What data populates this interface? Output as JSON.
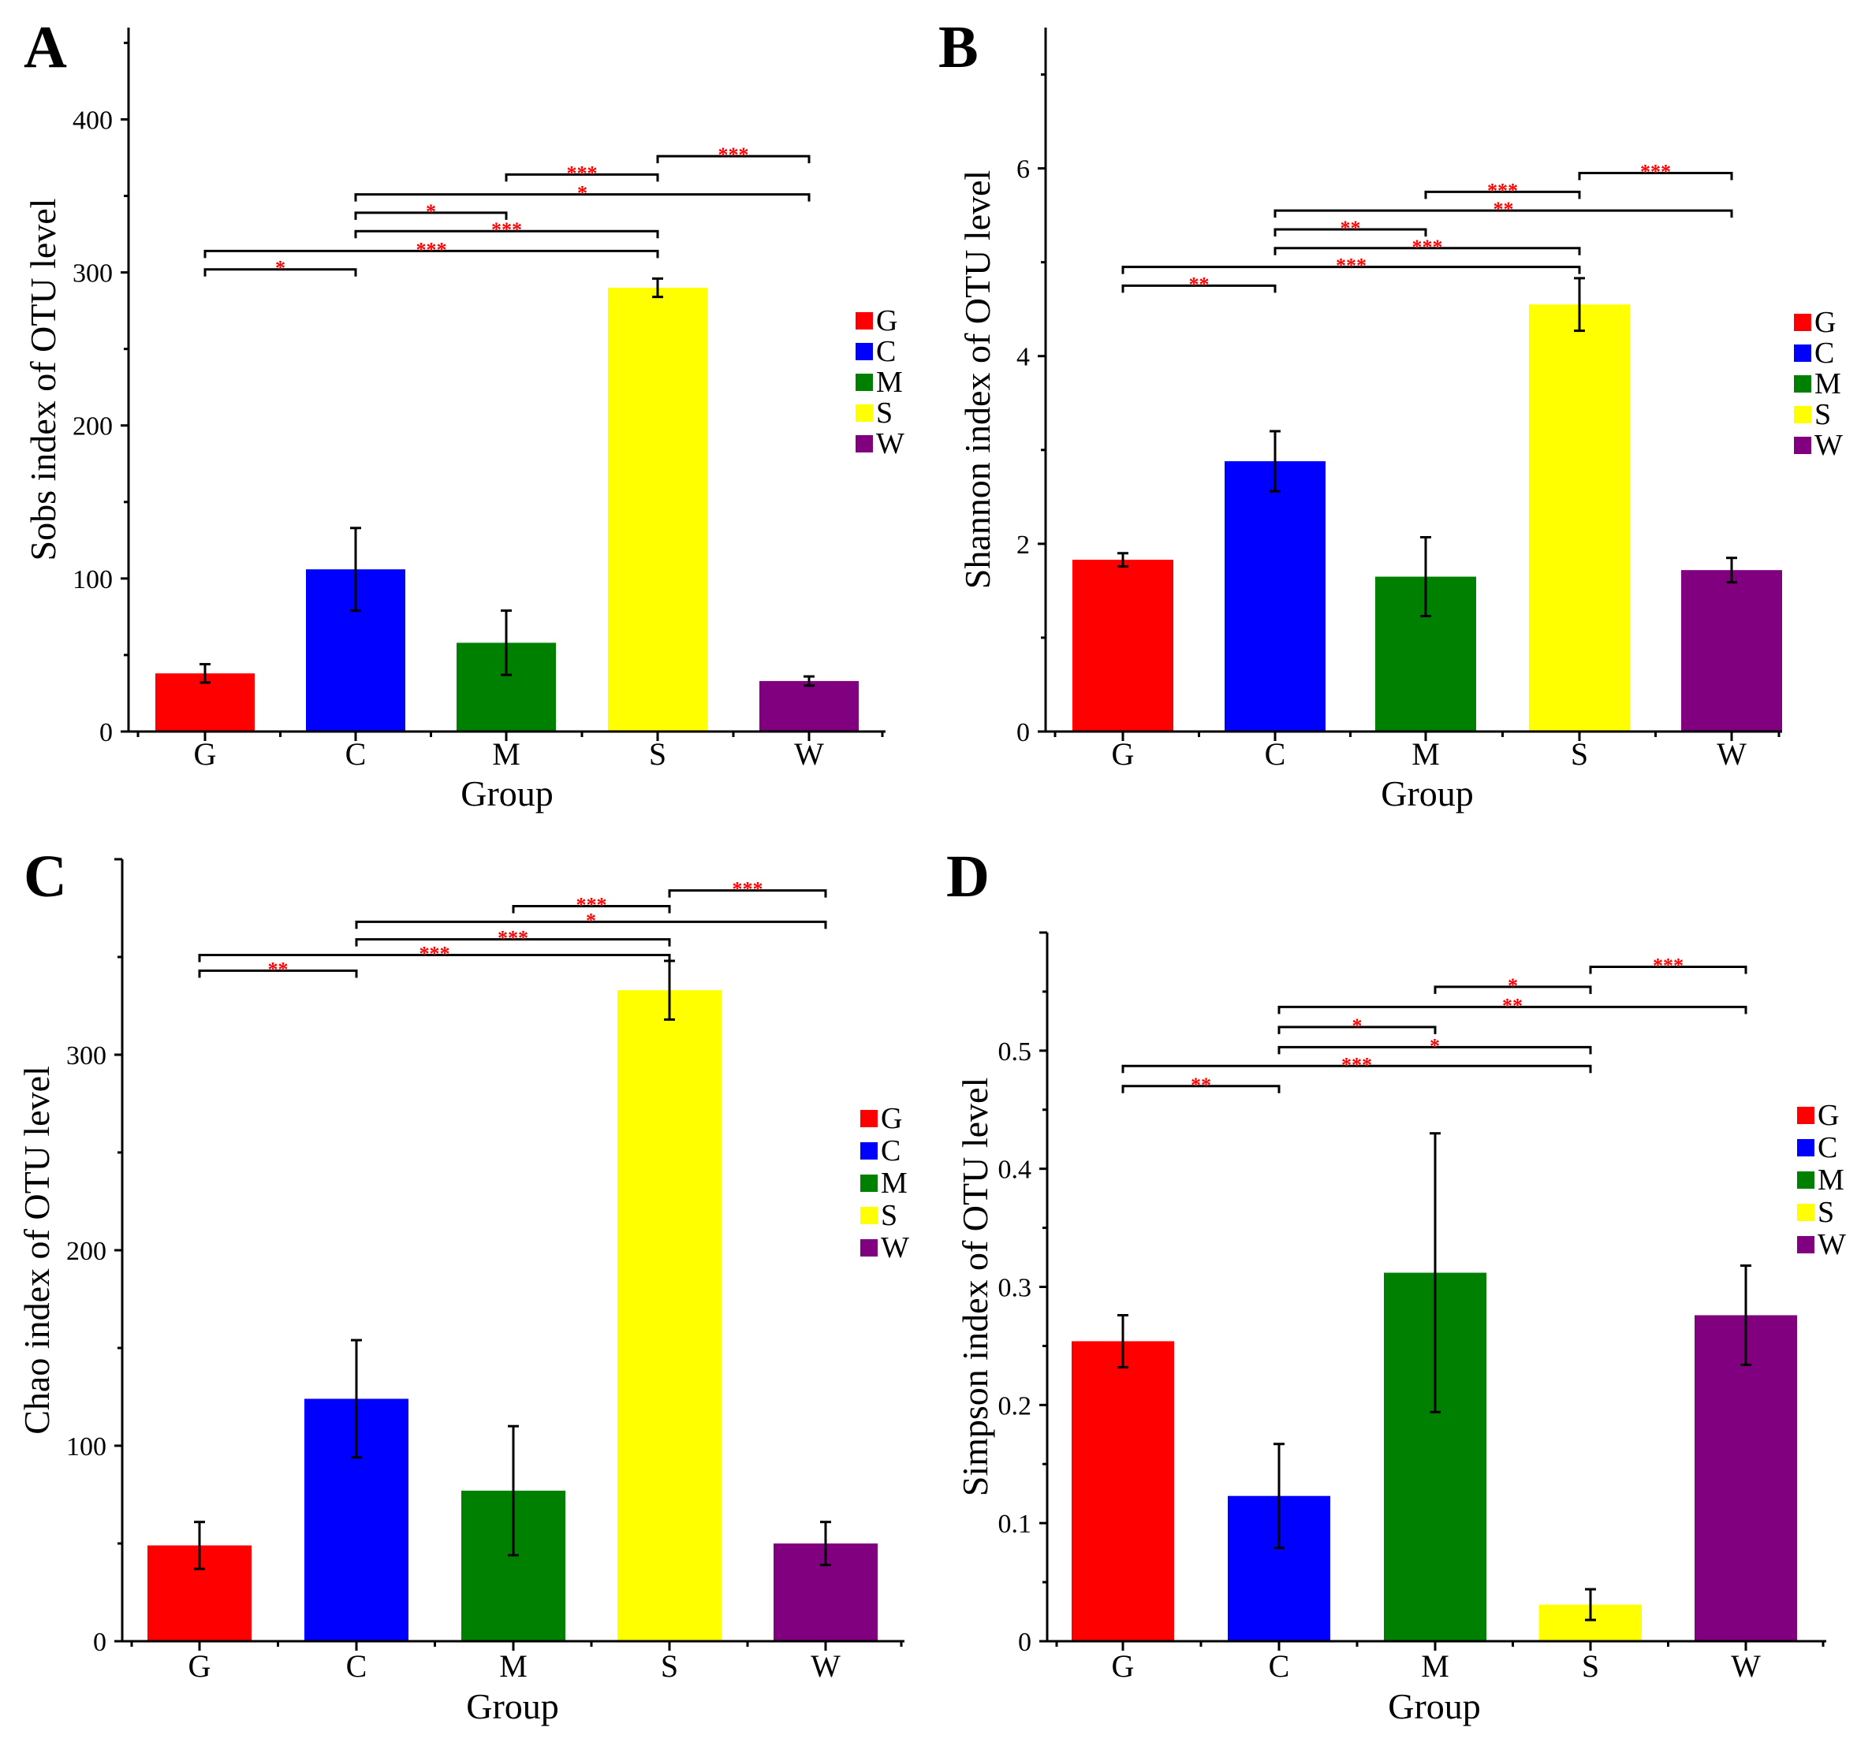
{
  "figure": {
    "colors": {
      "G": "#ff0000",
      "C": "#0000ff",
      "M": "#008000",
      "S": "#ffff00",
      "W": "#800080",
      "sig": "#ff0000",
      "axis": "#000000"
    }
  },
  "chart_data": [
    {
      "type": "bar",
      "panel_label": "A",
      "title": "",
      "xlabel": "Group",
      "ylabel": "Sobs index of OTU level",
      "categories": [
        "G",
        "C",
        "M",
        "S",
        "W"
      ],
      "values": [
        38,
        106,
        58,
        290,
        33
      ],
      "errors": [
        6,
        27,
        21,
        6,
        3
      ],
      "ylim": [
        0,
        460
      ],
      "yticks": [
        0,
        100,
        200,
        300,
        400
      ],
      "ytick_labels": [
        "0",
        "100",
        "200",
        "300",
        "400"
      ],
      "legend": [
        "G",
        "C",
        "M",
        "S",
        "W"
      ],
      "legend_position": "right",
      "significance": [
        {
          "from": "G",
          "to": "C",
          "y": 302,
          "stars": "*"
        },
        {
          "from": "G",
          "to": "S",
          "y": 314,
          "stars": "***"
        },
        {
          "from": "C",
          "to": "S",
          "y": 327,
          "stars": "***"
        },
        {
          "from": "C",
          "to": "M",
          "y": 339,
          "stars": "*"
        },
        {
          "from": "C",
          "to": "W",
          "y": 351,
          "stars": "*"
        },
        {
          "from": "M",
          "to": "S",
          "y": 364,
          "stars": "***"
        },
        {
          "from": "S",
          "to": "W",
          "y": 376,
          "stars": "***"
        }
      ]
    },
    {
      "type": "bar",
      "panel_label": "B",
      "title": "",
      "xlabel": "Group",
      "ylabel": "Shannon index of OTU level",
      "categories": [
        "G",
        "C",
        "M",
        "S",
        "W"
      ],
      "values": [
        1.83,
        2.88,
        1.65,
        4.55,
        1.72
      ],
      "errors": [
        0.07,
        0.32,
        0.42,
        0.28,
        0.13
      ],
      "ylim": [
        0,
        7.5
      ],
      "yticks": [
        0,
        2,
        4,
        6
      ],
      "ytick_labels": [
        "0",
        "2",
        "4",
        "6"
      ],
      "legend": [
        "G",
        "C",
        "M",
        "S",
        "W"
      ],
      "legend_position": "right",
      "significance": [
        {
          "from": "G",
          "to": "C",
          "y": 4.75,
          "stars": "**"
        },
        {
          "from": "G",
          "to": "S",
          "y": 4.95,
          "stars": "***"
        },
        {
          "from": "C",
          "to": "S",
          "y": 5.15,
          "stars": "***"
        },
        {
          "from": "C",
          "to": "M",
          "y": 5.35,
          "stars": "**"
        },
        {
          "from": "C",
          "to": "W",
          "y": 5.55,
          "stars": "**"
        },
        {
          "from": "M",
          "to": "S",
          "y": 5.75,
          "stars": "***"
        },
        {
          "from": "S",
          "to": "W",
          "y": 5.95,
          "stars": "***"
        }
      ]
    },
    {
      "type": "bar",
      "panel_label": "C",
      "title": "",
      "xlabel": "Group",
      "ylabel": "Chao index of OTU level",
      "categories": [
        "G",
        "C",
        "M",
        "S",
        "W"
      ],
      "values": [
        49,
        124,
        77,
        333,
        50
      ],
      "errors": [
        12,
        30,
        33,
        15,
        11
      ],
      "ylim": [
        0,
        400
      ],
      "yticks": [
        0,
        100,
        200,
        300
      ],
      "ytick_labels": [
        "0",
        "100",
        "200",
        "300"
      ],
      "legend": [
        "G",
        "C",
        "M",
        "S",
        "W"
      ],
      "legend_position": "right",
      "significance": [
        {
          "from": "G",
          "to": "C",
          "y": 343,
          "stars": "**"
        },
        {
          "from": "G",
          "to": "S",
          "y": 351,
          "stars": "***"
        },
        {
          "from": "C",
          "to": "S",
          "y": 359,
          "stars": "***"
        },
        {
          "from": "C",
          "to": "W",
          "y": 368,
          "stars": "*"
        },
        {
          "from": "M",
          "to": "S",
          "y": 376,
          "stars": "***"
        },
        {
          "from": "S",
          "to": "W",
          "y": 384,
          "stars": "***"
        }
      ]
    },
    {
      "type": "bar",
      "panel_label": "D",
      "title": "",
      "xlabel": "Group",
      "ylabel": "Simpson index of OTU level",
      "categories": [
        "G",
        "C",
        "M",
        "S",
        "W"
      ],
      "values": [
        0.254,
        0.123,
        0.312,
        0.031,
        0.276
      ],
      "errors": [
        0.022,
        0.044,
        0.118,
        0.013,
        0.042
      ],
      "ylim": [
        0,
        0.6
      ],
      "yticks": [
        0,
        0.1,
        0.2,
        0.3,
        0.4,
        0.5
      ],
      "ytick_labels": [
        "0",
        "0.1",
        "0.2",
        "0.3",
        "0.4",
        "0.5"
      ],
      "legend": [
        "G",
        "C",
        "M",
        "S",
        "W"
      ],
      "legend_position": "right",
      "significance": [
        {
          "from": "G",
          "to": "C",
          "y": 0.47,
          "stars": "**"
        },
        {
          "from": "G",
          "to": "S",
          "y": 0.487,
          "stars": "***"
        },
        {
          "from": "C",
          "to": "S",
          "y": 0.503,
          "stars": "*"
        },
        {
          "from": "C",
          "to": "M",
          "y": 0.52,
          "stars": "*"
        },
        {
          "from": "C",
          "to": "W",
          "y": 0.537,
          "stars": "**"
        },
        {
          "from": "M",
          "to": "S",
          "y": 0.554,
          "stars": "*"
        },
        {
          "from": "S",
          "to": "W",
          "y": 0.571,
          "stars": "***"
        }
      ]
    }
  ]
}
